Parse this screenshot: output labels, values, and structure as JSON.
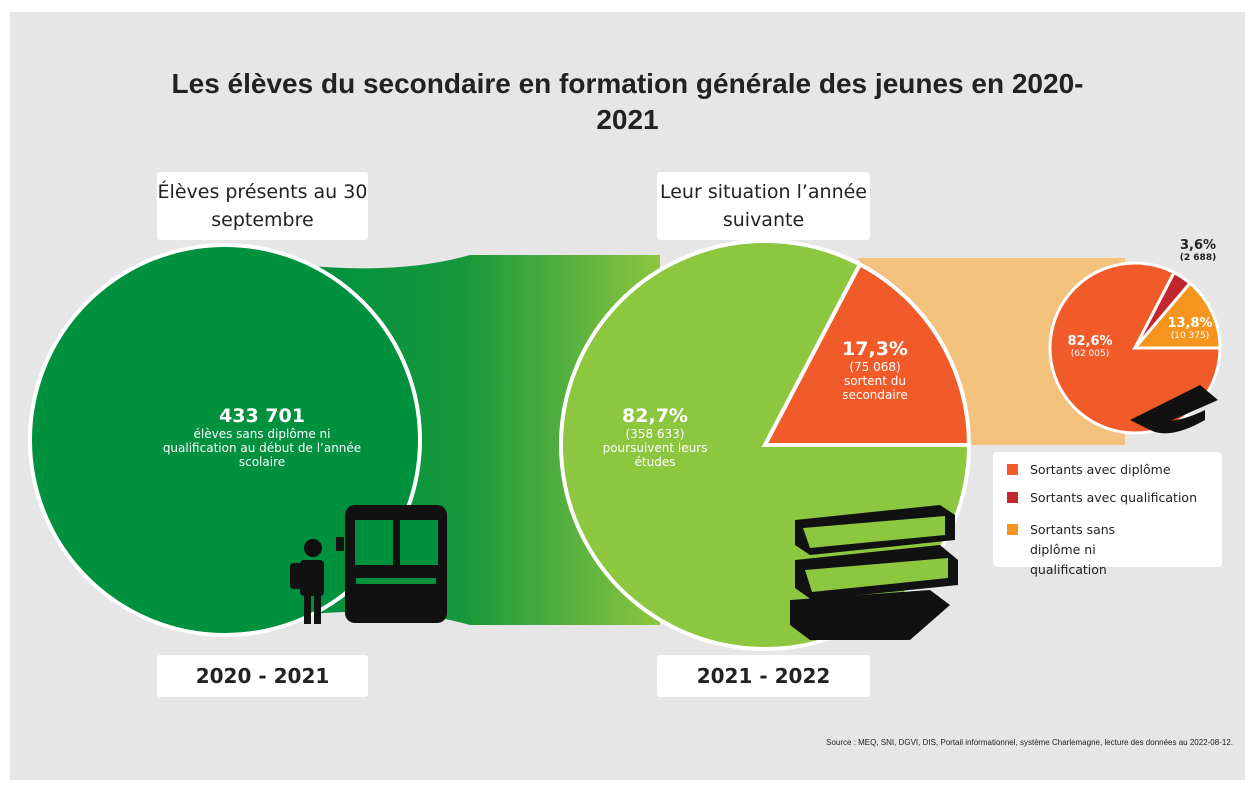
{
  "title": "Les élèves du secondaire en formation générale des jeunes en 2020-2021",
  "left": {
    "header": "Élèves présents au 30 septembre",
    "count": "433 701",
    "description": "élèves sans diplôme ni qualification au début de l’année scolaire",
    "year": "2020 - 2021"
  },
  "middle": {
    "header": "Leur situation l’année suivante",
    "year": "2021 - 2022",
    "segments": [
      {
        "value": 82.7,
        "value_label": "82,7%",
        "count": "(358 633)",
        "description": "poursuivent leurs études",
        "color": "#8dc63f"
      },
      {
        "value": 17.3,
        "value_label": "17,3%",
        "count": "(75 068)",
        "description": "sortent du secondaire",
        "color": "#f15a29"
      }
    ]
  },
  "right": {
    "segments": [
      {
        "name": "Sortants avec diplôme",
        "value": 82.6,
        "value_label": "82,6%",
        "count": "(62 005)",
        "color": "#f15a29"
      },
      {
        "name": "Sortants avec qualification",
        "value": 3.6,
        "value_label": "3,6%",
        "count": "(2 688)",
        "color": "#c1272d"
      },
      {
        "name": "Sortants sans diplôme ni qualification",
        "value": 13.8,
        "value_label": "13,8%",
        "count": "(10 375)",
        "color": "#f7941d"
      }
    ]
  },
  "source": "Source : MEQ, SNI, DGVI, DIS, Portail informationnel, système Charlemagne, lecture des données au 2022-08-12."
}
